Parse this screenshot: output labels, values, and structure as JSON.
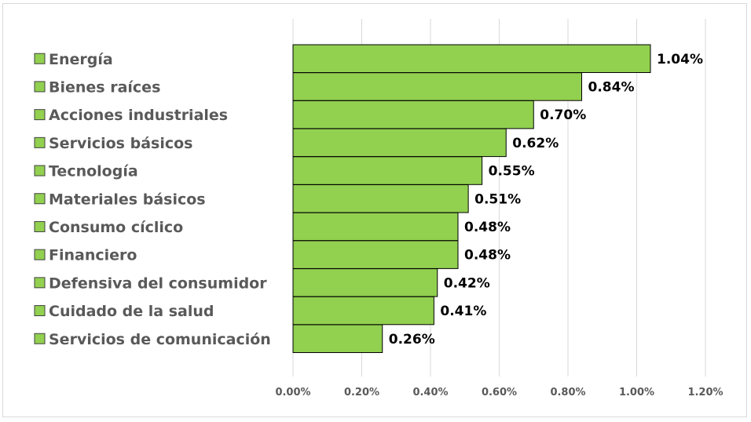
{
  "chart_data": {
    "type": "bar",
    "orientation": "horizontal",
    "title": "",
    "xlabel": "",
    "ylabel": "",
    "categories": [
      "Energía",
      "Bienes raíces",
      "Acciones industriales",
      "Servicios básicos",
      "Tecnología",
      "Materiales básicos",
      "Consumo cíclico",
      "Financiero",
      "Defensiva del consumidor",
      "Cuidado de la salud",
      "Servicios de comunicación"
    ],
    "values": [
      1.04,
      0.84,
      0.7,
      0.62,
      0.55,
      0.51,
      0.48,
      0.48,
      0.42,
      0.41,
      0.26
    ],
    "value_labels": [
      "1.04%",
      "0.84%",
      "0.70%",
      "0.62%",
      "0.55%",
      "0.51%",
      "0.48%",
      "0.48%",
      "0.42%",
      "0.41%",
      "0.26%"
    ],
    "xlim": [
      0,
      1.2
    ],
    "x_ticks": [
      0,
      0.2,
      0.4,
      0.6,
      0.8,
      1.0,
      1.2
    ],
    "x_tick_labels": [
      "0.00%",
      "0.20%",
      "0.40%",
      "0.60%",
      "0.80%",
      "1.00%",
      "1.20%"
    ],
    "grid": "vertical",
    "legend": "left",
    "colors": {
      "bar": "#92d050",
      "bar_border": "#000000",
      "grid": "#d9d9d9",
      "label": "#595959"
    }
  }
}
